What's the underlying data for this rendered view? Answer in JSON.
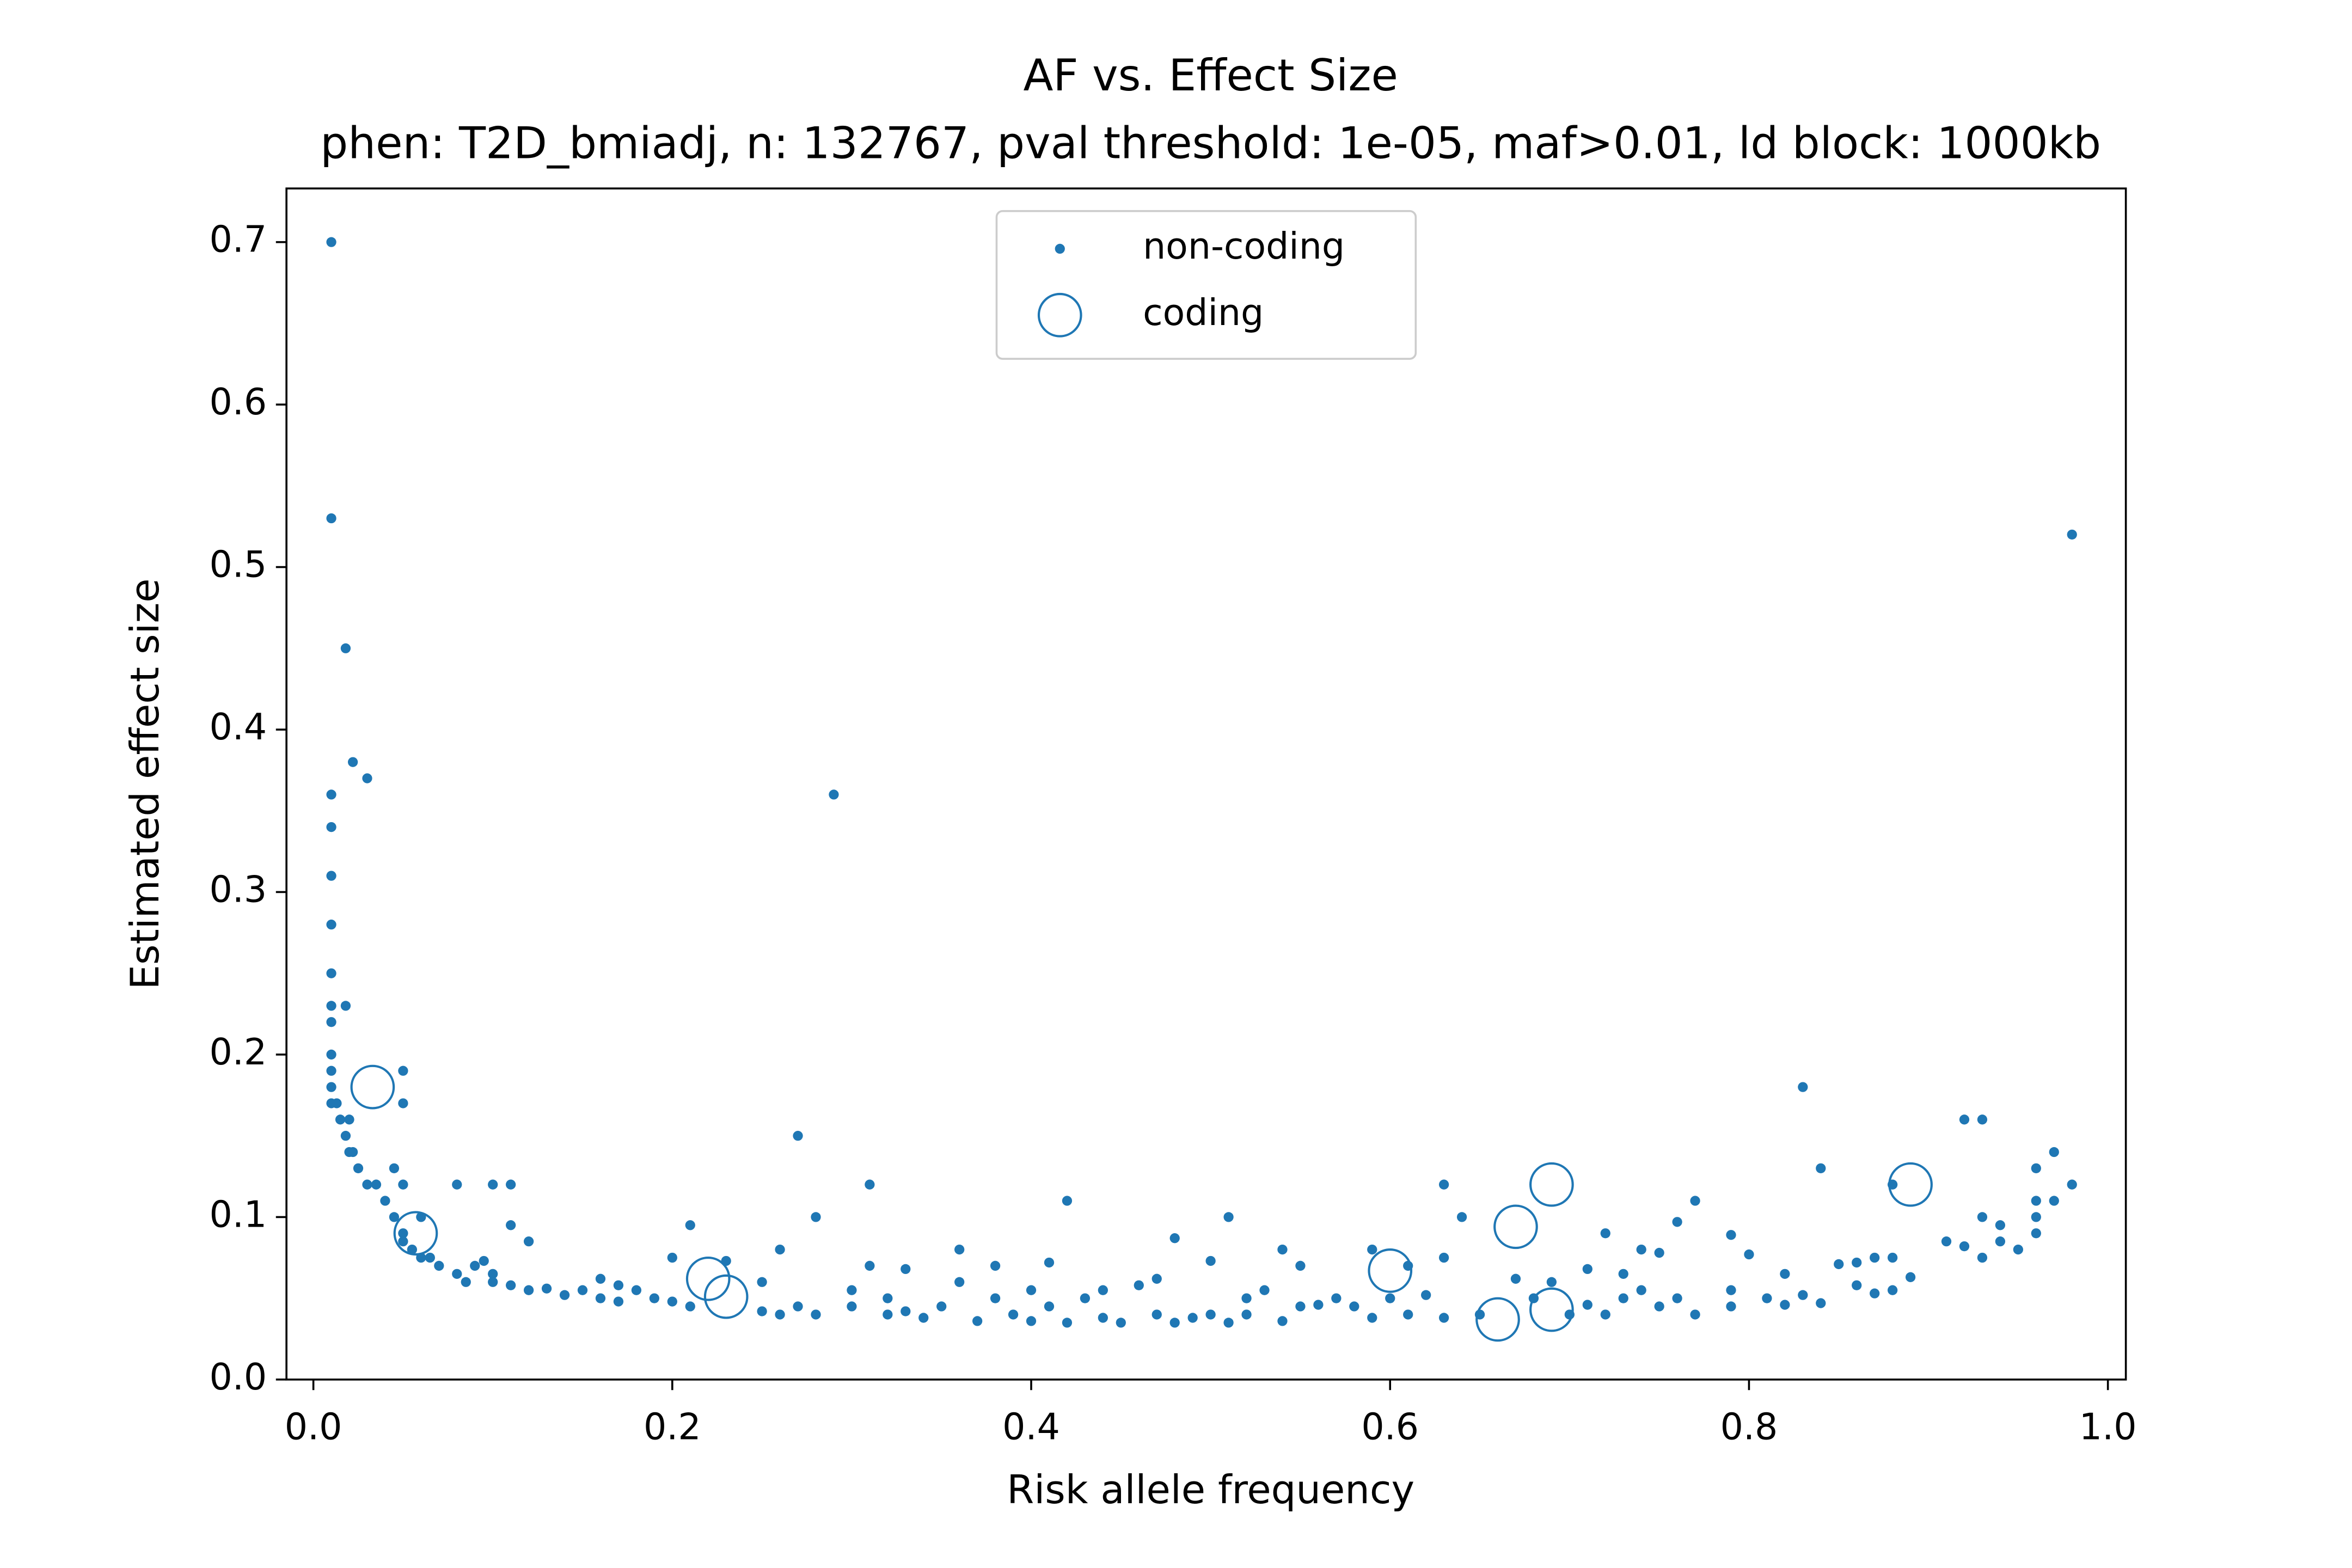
{
  "chart_data": {
    "type": "scatter",
    "title": "AF vs. Effect Size",
    "subtitle": "phen: T2D_bmiadj, n: 132767, pval threshold: 1e-05, maf>0.01, ld block: 1000kb",
    "x_label": "Risk allele frequency",
    "y_label": "Estimated effect size",
    "xlim": [
      -0.015,
      1.01
    ],
    "ylim": [
      0,
      0.733
    ],
    "xticks": [
      {
        "value": 0,
        "label": "0.0"
      },
      0.2,
      0.4,
      0.6,
      0.8,
      {
        "value": 1,
        "label": "1.0"
      }
    ],
    "yticks": [
      {
        "value": 0,
        "label": "0.0"
      },
      0.1,
      0.2,
      0.3,
      0.4,
      0.5,
      0.6,
      0.7
    ],
    "legend": "upper center",
    "series": [
      {
        "name": "non-coding",
        "color": "#1f77b4",
        "marker": "dot",
        "x": [
          0.01,
          0.01,
          0.018,
          0.022,
          0.03,
          0.01,
          0.01,
          0.01,
          0.01,
          0.01,
          0.01,
          0.018,
          0.01,
          0.01,
          0.01,
          0.01,
          0.01,
          0.013,
          0.015,
          0.02,
          0.018,
          0.02,
          0.022,
          0.025,
          0.03,
          0.035,
          0.045,
          0.05,
          0.05,
          0.05,
          0.04,
          0.045,
          0.05,
          0.05,
          0.055,
          0.06,
          0.06,
          0.065,
          0.07,
          0.08,
          0.08,
          0.085,
          0.09,
          0.095,
          0.1,
          0.1,
          0.1,
          0.11,
          0.11,
          0.11,
          0.12,
          0.12,
          0.13,
          0.14,
          0.15,
          0.16,
          0.16,
          0.17,
          0.17,
          0.18,
          0.19,
          0.2,
          0.2,
          0.21,
          0.21,
          0.23,
          0.25,
          0.25,
          0.26,
          0.26,
          0.27,
          0.27,
          0.28,
          0.28,
          0.29,
          0.3,
          0.3,
          0.31,
          0.31,
          0.32,
          0.32,
          0.33,
          0.33,
          0.34,
          0.35,
          0.36,
          0.36,
          0.37,
          0.38,
          0.38,
          0.39,
          0.4,
          0.4,
          0.41,
          0.41,
          0.42,
          0.42,
          0.43,
          0.44,
          0.44,
          0.45,
          0.46,
          0.47,
          0.47,
          0.48,
          0.48,
          0.49,
          0.5,
          0.5,
          0.51,
          0.51,
          0.52,
          0.52,
          0.53,
          0.54,
          0.54,
          0.55,
          0.55,
          0.56,
          0.57,
          0.58,
          0.59,
          0.59,
          0.6,
          0.61,
          0.61,
          0.62,
          0.63,
          0.63,
          0.63,
          0.64,
          0.65,
          0.67,
          0.68,
          0.69,
          0.7,
          0.71,
          0.71,
          0.72,
          0.72,
          0.73,
          0.73,
          0.74,
          0.74,
          0.75,
          0.75,
          0.76,
          0.76,
          0.77,
          0.77,
          0.79,
          0.79,
          0.79,
          0.8,
          0.81,
          0.82,
          0.82,
          0.83,
          0.83,
          0.84,
          0.84,
          0.85,
          0.86,
          0.86,
          0.87,
          0.87,
          0.88,
          0.88,
          0.88,
          0.89,
          0.91,
          0.92,
          0.92,
          0.93,
          0.93,
          0.93,
          0.94,
          0.94,
          0.95,
          0.96,
          0.96,
          0.96,
          0.96,
          0.97,
          0.97,
          0.98,
          0.98
        ],
        "y": [
          0.7,
          0.53,
          0.45,
          0.38,
          0.37,
          0.36,
          0.34,
          0.31,
          0.28,
          0.25,
          0.23,
          0.23,
          0.22,
          0.2,
          0.19,
          0.18,
          0.17,
          0.17,
          0.16,
          0.16,
          0.15,
          0.14,
          0.14,
          0.13,
          0.12,
          0.12,
          0.13,
          0.12,
          0.19,
          0.17,
          0.11,
          0.1,
          0.09,
          0.085,
          0.08,
          0.1,
          0.075,
          0.075,
          0.07,
          0.12,
          0.065,
          0.06,
          0.07,
          0.073,
          0.12,
          0.065,
          0.06,
          0.12,
          0.095,
          0.058,
          0.085,
          0.055,
          0.056,
          0.052,
          0.055,
          0.062,
          0.05,
          0.058,
          0.048,
          0.055,
          0.05,
          0.048,
          0.075,
          0.095,
          0.045,
          0.073,
          0.06,
          0.042,
          0.08,
          0.04,
          0.15,
          0.045,
          0.1,
          0.04,
          0.36,
          0.055,
          0.045,
          0.12,
          0.07,
          0.05,
          0.04,
          0.068,
          0.042,
          0.038,
          0.045,
          0.08,
          0.06,
          0.036,
          0.07,
          0.05,
          0.04,
          0.055,
          0.036,
          0.072,
          0.045,
          0.11,
          0.035,
          0.05,
          0.055,
          0.038,
          0.035,
          0.058,
          0.062,
          0.04,
          0.087,
          0.035,
          0.038,
          0.073,
          0.04,
          0.1,
          0.035,
          0.05,
          0.04,
          0.055,
          0.08,
          0.036,
          0.07,
          0.045,
          0.046,
          0.05,
          0.045,
          0.08,
          0.038,
          0.05,
          0.07,
          0.04,
          0.052,
          0.12,
          0.075,
          0.038,
          0.1,
          0.04,
          0.062,
          0.05,
          0.06,
          0.04,
          0.068,
          0.046,
          0.09,
          0.04,
          0.065,
          0.05,
          0.08,
          0.055,
          0.078,
          0.045,
          0.097,
          0.05,
          0.11,
          0.04,
          0.089,
          0.055,
          0.045,
          0.077,
          0.05,
          0.065,
          0.046,
          0.18,
          0.052,
          0.13,
          0.047,
          0.071,
          0.072,
          0.058,
          0.075,
          0.053,
          0.075,
          0.055,
          0.12,
          0.063,
          0.085,
          0.16,
          0.082,
          0.16,
          0.1,
          0.075,
          0.095,
          0.085,
          0.08,
          0.13,
          0.1,
          0.09,
          0.11,
          0.14,
          0.11,
          0.12,
          0.52
        ]
      },
      {
        "name": "coding",
        "color": "#1f77b4",
        "marker": "circle",
        "x": [
          0.033,
          0.057,
          0.22,
          0.23,
          0.6,
          0.66,
          0.67,
          0.69,
          0.69,
          0.89
        ],
        "y": [
          0.18,
          0.09,
          0.062,
          0.051,
          0.067,
          0.037,
          0.094,
          0.12,
          0.043,
          0.12
        ]
      }
    ]
  }
}
